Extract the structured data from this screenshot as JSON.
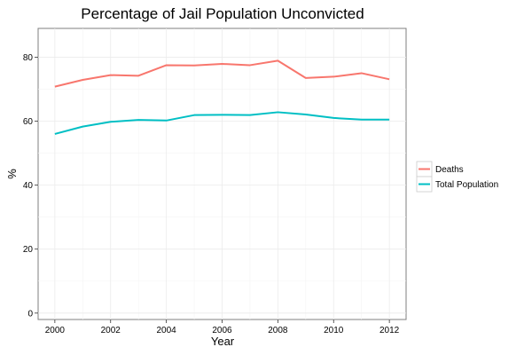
{
  "chart_data": {
    "type": "line",
    "title": "Percentage of Jail Population Unconvicted",
    "xlabel": "Year",
    "ylabel": "%",
    "x": [
      2000,
      2001,
      2002,
      2003,
      2004,
      2005,
      2006,
      2007,
      2008,
      2009,
      2010,
      2011,
      2012
    ],
    "xlim": [
      1999.4,
      2012.6
    ],
    "ylim": [
      -2,
      89
    ],
    "x_ticks": [
      "2000",
      "2002",
      "2004",
      "2006",
      "2008",
      "2010",
      "2012"
    ],
    "y_ticks": [
      "0",
      "20",
      "40",
      "60",
      "80"
    ],
    "grid": true,
    "legend_position": "right",
    "series": [
      {
        "name": "Deaths",
        "color": "#f8766d",
        "values": [
          70.8,
          72.9,
          74.4,
          74.2,
          77.5,
          77.4,
          77.9,
          77.5,
          78.9,
          73.5,
          73.9,
          75.0,
          73.1
        ]
      },
      {
        "name": "Total Population",
        "color": "#00bfc4",
        "values": [
          56.0,
          58.3,
          59.8,
          60.4,
          60.2,
          61.9,
          62.0,
          61.9,
          62.8,
          62.1,
          61.0,
          60.5,
          60.5
        ]
      }
    ]
  }
}
